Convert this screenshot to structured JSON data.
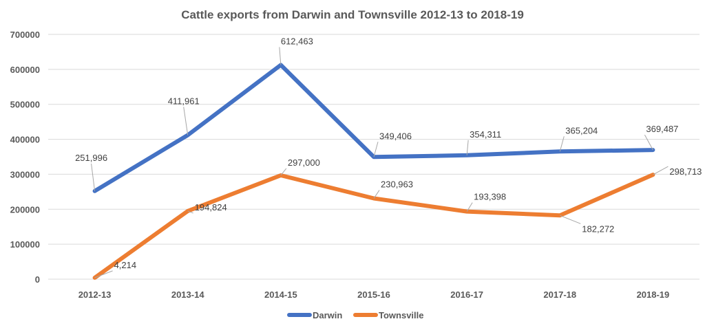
{
  "chart_data": {
    "type": "line",
    "title": "Cattle exports from Darwin and Townsville 2012-13 to 2018-19",
    "categories": [
      "2012-13",
      "2013-14",
      "2014-15",
      "2015-16",
      "2016-17",
      "2017-18",
      "2018-19"
    ],
    "ylim": [
      0,
      700000
    ],
    "yticks": [
      "0",
      "100000",
      "200000",
      "300000",
      "400000",
      "500000",
      "600000",
      "700000"
    ],
    "grid": true,
    "legend_position": "bottom",
    "series": [
      {
        "name": "Darwin",
        "color": "#4472c4",
        "values": [
          251996,
          411961,
          612463,
          349406,
          354311,
          365204,
          369487
        ],
        "labels": [
          "251,996",
          "411,961",
          "612,463",
          "349,406",
          "354,311",
          "365,204",
          "369,487"
        ]
      },
      {
        "name": "Townsville",
        "color": "#ed7d31",
        "values": [
          4214,
          194824,
          297000,
          230963,
          193398,
          182272,
          298713
        ],
        "labels": [
          "4,214",
          "194,824",
          "297,000",
          "230,963",
          "193,398",
          "182,272",
          "298,713"
        ]
      }
    ]
  }
}
